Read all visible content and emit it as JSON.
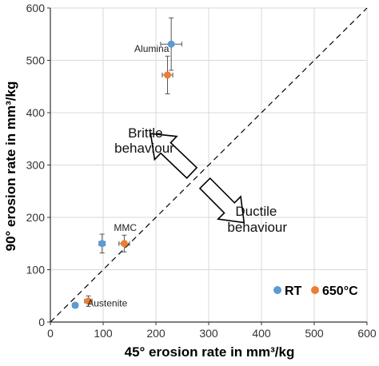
{
  "chart_data": {
    "type": "scatter",
    "xlabel": "45° erosion rate in mm³/kg",
    "ylabel": "90° erosion rate in mm³/kg",
    "xlim": [
      0,
      600
    ],
    "ylim": [
      0,
      600
    ],
    "xticks": [
      0,
      100,
      200,
      300,
      400,
      500,
      600
    ],
    "yticks": [
      0,
      100,
      200,
      300,
      400,
      500,
      600
    ],
    "grid": true,
    "legend_position": "bottom-right",
    "reference_line": {
      "style": "dashed",
      "x": [
        0,
        600
      ],
      "y": [
        0,
        600
      ]
    },
    "series": [
      {
        "name": "RT",
        "color": "#5b9bd5",
        "points": [
          {
            "x": 229,
            "y": 531,
            "xerr": 20,
            "yerr": 50
          },
          {
            "x": 98,
            "y": 150,
            "xerr": 6,
            "yerr": 18
          },
          {
            "x": 47,
            "y": 32,
            "xerr": 5,
            "yerr": 4
          }
        ]
      },
      {
        "name": "650°C",
        "color": "#ed7d31",
        "points": [
          {
            "x": 222,
            "y": 472,
            "xerr": 10,
            "yerr": 36
          },
          {
            "x": 140,
            "y": 150,
            "xerr": 10,
            "yerr": 16
          },
          {
            "x": 72,
            "y": 40,
            "xerr": 7,
            "yerr": 10
          }
        ]
      }
    ],
    "annotations": [
      {
        "text": "Alumina",
        "x": 192,
        "y": 522
      },
      {
        "text": "MMC",
        "x": 142,
        "y": 180
      },
      {
        "text": "Austenite",
        "x": 108,
        "y": 36
      },
      {
        "text": "Brittle",
        "x": 180,
        "y": 362
      },
      {
        "text": "behaviour",
        "x": 178,
        "y": 333
      },
      {
        "text": "Ductile",
        "x": 390,
        "y": 212
      },
      {
        "text": "behaviour",
        "x": 392,
        "y": 182
      }
    ],
    "arrows": [
      {
        "direction": "up-left",
        "tip": [
          190,
          360
        ],
        "tail": [
          268,
          285
        ]
      },
      {
        "direction": "down-right",
        "tip": [
          367,
          190
        ],
        "tail": [
          293,
          265
        ]
      }
    ]
  }
}
